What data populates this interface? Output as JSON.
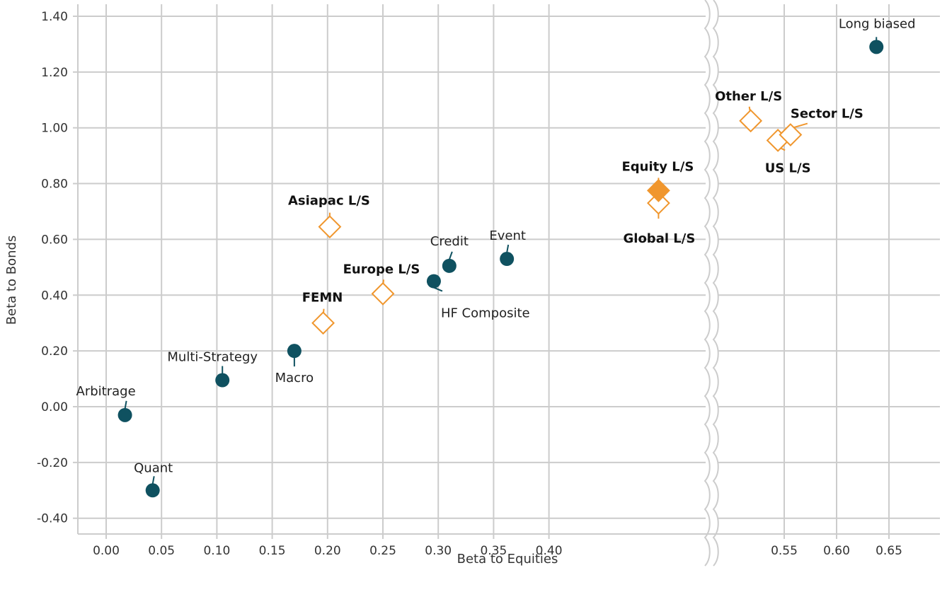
{
  "chart_data": {
    "type": "scatter",
    "xlabel": "Beta to Equities",
    "ylabel": "Beta to Bonds",
    "x_ticks": [
      "0.00",
      "0.05",
      "0.10",
      "0.15",
      "0.20",
      "0.25",
      "0.30",
      "0.35",
      "0.40",
      "0.55",
      "0.60",
      "0.65"
    ],
    "y_ticks": [
      "1.40",
      "1.20",
      "1.00",
      "0.80",
      "0.60",
      "0.40",
      "0.20",
      "0.00",
      "-0.20",
      "-0.40"
    ],
    "xlim": [
      -0.025,
      0.675
    ],
    "ylim": [
      -0.45,
      1.45
    ],
    "axis_break": {
      "after": 0.4,
      "resumes_at": 0.55
    },
    "grid": true,
    "legend": "none",
    "colors": {
      "hedge_fund_strategy": "#0f5160",
      "equity_long_short": "#f0962d",
      "grid": "#cccccc"
    },
    "series": [
      {
        "marker": "circle",
        "points": [
          {
            "label": "Arbitrage",
            "x": 0.017,
            "y": -0.03
          },
          {
            "label": "Quant",
            "x": 0.042,
            "y": -0.3
          },
          {
            "label": "Multi-Strategy",
            "x": 0.105,
            "y": 0.095
          },
          {
            "label": "Macro",
            "x": 0.17,
            "y": 0.2
          },
          {
            "label": "HF Composite",
            "x": 0.296,
            "y": 0.45
          },
          {
            "label": "Credit",
            "x": 0.31,
            "y": 0.505
          },
          {
            "label": "Event",
            "x": 0.362,
            "y": 0.53
          },
          {
            "label": "Long biased",
            "x": 0.638,
            "y": 1.29
          }
        ]
      },
      {
        "marker": "diamond",
        "points": [
          {
            "label": "FEMN",
            "x": 0.196,
            "y": 0.3
          },
          {
            "label": "Asiapac L/S",
            "x": 0.202,
            "y": 0.645
          },
          {
            "label": "Europe L/S",
            "x": 0.25,
            "y": 0.405
          },
          {
            "label": "Global L/S",
            "x": 0.43,
            "y": 0.73
          },
          {
            "label": "Equity L/S",
            "x": 0.43,
            "y": 0.775,
            "filled": true
          },
          {
            "label": "Other L/S",
            "x": 0.518,
            "y": 1.025
          },
          {
            "label": "US L/S",
            "x": 0.544,
            "y": 0.955
          },
          {
            "label": "Sector L/S",
            "x": 0.556,
            "y": 0.975
          }
        ]
      }
    ]
  }
}
